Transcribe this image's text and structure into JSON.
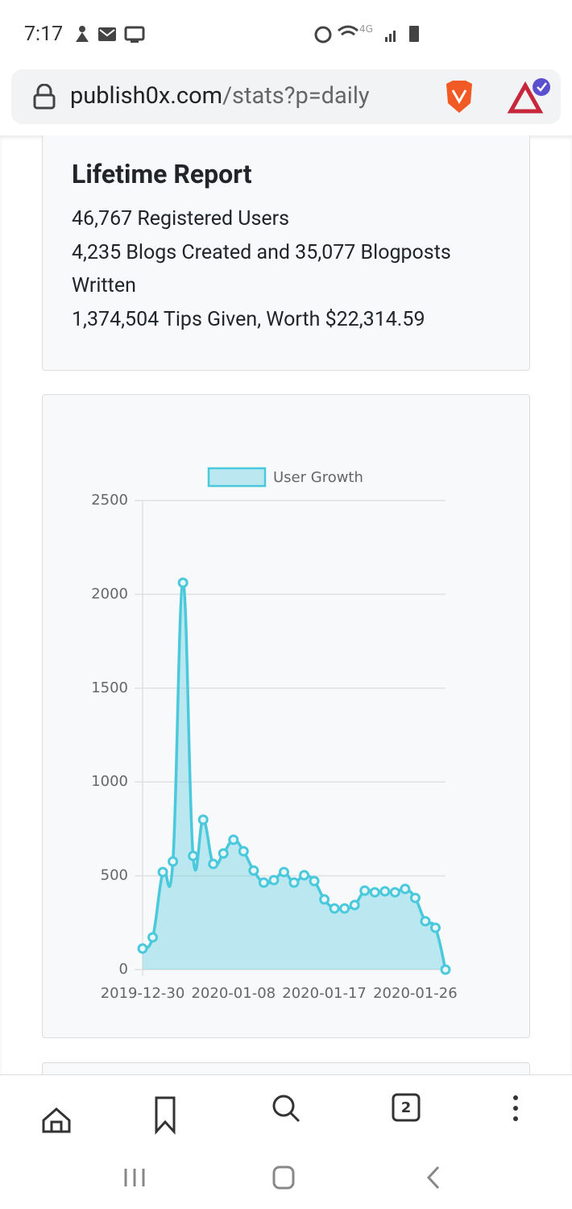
{
  "status_bar": {
    "time": "7:17",
    "network": "4G"
  },
  "browser": {
    "url_host": "publish0x.com",
    "url_path": "/stats?p=daily",
    "tab_count": "2"
  },
  "lifetime_report": {
    "title": "Lifetime Report",
    "lines": [
      "46,767 Registered Users",
      "4,235 Blogs Created and 35,077 Blogposts Written",
      "1,374,504 Tips Given, Worth $22,314.59"
    ]
  },
  "chart_data": {
    "type": "line",
    "categories": [
      "2019-12-30",
      null,
      null,
      null,
      null,
      null,
      null,
      null,
      null,
      "2020-01-08",
      null,
      null,
      null,
      null,
      null,
      null,
      null,
      null,
      "2020-01-17",
      null,
      null,
      null,
      null,
      null,
      null,
      null,
      null,
      "2020-01-26",
      null,
      null,
      null
    ],
    "series": [
      {
        "name": "User Growth",
        "color": "#4bc9dc",
        "values": [
          112,
          172,
          520,
          576,
          2062,
          606,
          799,
          563,
          619,
          692,
          631,
          528,
          464,
          477,
          520,
          464,
          503,
          472,
          374,
          326,
          326,
          344,
          421,
          412,
          417,
          412,
          430,
          382,
          258,
          223,
          0
        ]
      }
    ],
    "ylim": [
      0,
      2500
    ],
    "yticks": [
      0,
      500,
      1000,
      1500,
      2000,
      2500
    ],
    "grid": true,
    "fill": true,
    "legend": "top"
  }
}
